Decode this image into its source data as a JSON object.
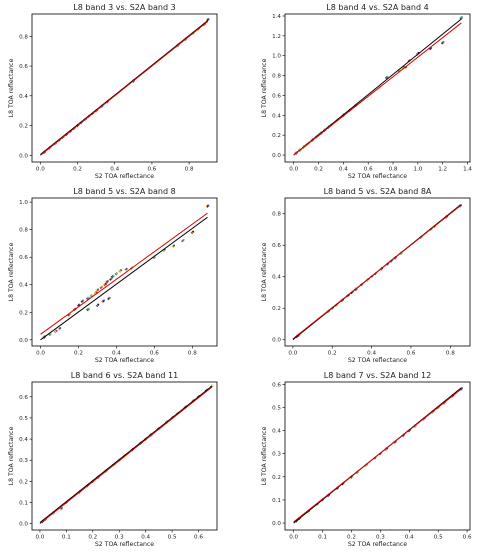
{
  "figure": {
    "xlabel": "S2 TOA reflectance",
    "ylabel": "L8 TOA reflectance"
  },
  "chart_data": [
    {
      "type": "scatter",
      "title": "L8 band 3 vs. S2A band 3",
      "xlabel": "S2 TOA reflectance",
      "ylabel": "L8 TOA reflectance",
      "xlim": [
        -0.045,
        0.95
      ],
      "ylim": [
        -0.045,
        0.95
      ],
      "xticks": [
        "0.0",
        "0.2",
        "0.4",
        "0.6",
        "0.8"
      ],
      "yticks": [
        "0.0",
        "0.2",
        "0.4",
        "0.6",
        "0.8"
      ],
      "grid": false,
      "series": [
        {
          "values": [
            [
              0.02,
              0.02
            ],
            [
              0.05,
              0.05
            ],
            [
              0.08,
              0.08
            ],
            [
              0.1,
              0.1
            ],
            [
              0.12,
              0.12
            ],
            [
              0.14,
              0.14
            ],
            [
              0.16,
              0.16
            ],
            [
              0.18,
              0.18
            ],
            [
              0.2,
              0.2
            ],
            [
              0.22,
              0.22
            ],
            [
              0.24,
              0.24
            ],
            [
              0.26,
              0.26
            ],
            [
              0.28,
              0.28
            ],
            [
              0.3,
              0.3
            ],
            [
              0.33,
              0.33
            ],
            [
              0.36,
              0.36
            ],
            [
              0.5,
              0.5
            ],
            [
              0.74,
              0.74
            ],
            [
              0.78,
              0.78
            ],
            [
              0.82,
              0.82
            ],
            [
              0.85,
              0.85
            ],
            [
              0.88,
              0.88
            ],
            [
              0.9,
              0.91
            ]
          ]
        }
      ],
      "fit_lines": [
        {
          "color": "#000000",
          "points": [
            [
              0.0,
              0.005
            ],
            [
              0.9,
              0.905
            ]
          ]
        },
        {
          "color": "#e00000",
          "points": [
            [
              0.0,
              0.0
            ],
            [
              0.9,
              0.9
            ]
          ]
        }
      ]
    },
    {
      "type": "scatter",
      "title": "L8 band 4 vs. S2A band 4",
      "xlabel": "S2 TOA reflectance",
      "ylabel": "L8 TOA reflectance",
      "xlim": [
        -0.07,
        1.42
      ],
      "ylim": [
        -0.07,
        1.42
      ],
      "xticks": [
        "0.0",
        "0.2",
        "0.4",
        "0.6",
        "0.8",
        "1.0",
        "1.2",
        "1.4"
      ],
      "yticks": [
        "0.0",
        "0.2",
        "0.4",
        "0.6",
        "0.8",
        "1.0",
        "1.2",
        "1.4"
      ],
      "grid": false,
      "series": [
        {
          "values": [
            [
              0.02,
              0.02
            ],
            [
              0.05,
              0.05
            ],
            [
              0.08,
              0.08
            ],
            [
              0.1,
              0.1
            ],
            [
              0.12,
              0.12
            ],
            [
              0.15,
              0.15
            ],
            [
              0.18,
              0.18
            ],
            [
              0.2,
              0.2
            ],
            [
              0.22,
              0.22
            ],
            [
              0.25,
              0.25
            ],
            [
              0.28,
              0.28
            ],
            [
              0.3,
              0.3
            ],
            [
              0.35,
              0.35
            ],
            [
              0.4,
              0.4
            ],
            [
              0.45,
              0.45
            ],
            [
              0.5,
              0.5
            ],
            [
              0.75,
              0.78
            ],
            [
              0.85,
              0.85
            ],
            [
              0.88,
              0.88
            ],
            [
              0.9,
              0.88
            ],
            [
              0.93,
              0.95
            ],
            [
              1.0,
              1.02
            ],
            [
              1.1,
              1.07
            ],
            [
              1.2,
              1.13
            ],
            [
              1.35,
              1.38
            ]
          ]
        }
      ],
      "fit_lines": [
        {
          "color": "#000000",
          "points": [
            [
              0.0,
              0.0
            ],
            [
              1.35,
              1.37
            ]
          ]
        },
        {
          "color": "#e00000",
          "points": [
            [
              0.0,
              0.0
            ],
            [
              1.35,
              1.33
            ]
          ]
        }
      ]
    },
    {
      "type": "scatter",
      "title": "L8 band 5 vs. S2A band 8",
      "xlabel": "S2 TOA reflectance",
      "ylabel": "L8 TOA reflectance",
      "xlim": [
        -0.045,
        0.93
      ],
      "ylim": [
        -0.045,
        1.03
      ],
      "xticks": [
        "0.0",
        "0.2",
        "0.4",
        "0.6",
        "0.8"
      ],
      "yticks": [
        "0.0",
        "0.2",
        "0.4",
        "0.6",
        "0.8",
        "1.0"
      ],
      "grid": false,
      "series": [
        {
          "values": [
            [
              0.02,
              0.02
            ],
            [
              0.05,
              0.04
            ],
            [
              0.08,
              0.06
            ],
            [
              0.1,
              0.08
            ],
            [
              0.15,
              0.18
            ],
            [
              0.18,
              0.22
            ],
            [
              0.2,
              0.25
            ],
            [
              0.22,
              0.28
            ],
            [
              0.25,
              0.3
            ],
            [
              0.27,
              0.32
            ],
            [
              0.29,
              0.34
            ],
            [
              0.3,
              0.36
            ],
            [
              0.32,
              0.38
            ],
            [
              0.34,
              0.4
            ],
            [
              0.35,
              0.42
            ],
            [
              0.37,
              0.44
            ],
            [
              0.38,
              0.46
            ],
            [
              0.4,
              0.48
            ],
            [
              0.42,
              0.5
            ],
            [
              0.45,
              0.51
            ],
            [
              0.48,
              0.52
            ],
            [
              0.3,
              0.25
            ],
            [
              0.33,
              0.28
            ],
            [
              0.36,
              0.3
            ],
            [
              0.25,
              0.22
            ],
            [
              0.6,
              0.6
            ],
            [
              0.65,
              0.65
            ],
            [
              0.7,
              0.68
            ],
            [
              0.75,
              0.72
            ],
            [
              0.8,
              0.78
            ],
            [
              0.88,
              0.97
            ]
          ]
        }
      ],
      "fit_lines": [
        {
          "color": "#000000",
          "points": [
            [
              0.0,
              0.0
            ],
            [
              0.88,
              0.89
            ]
          ]
        },
        {
          "color": "#e00000",
          "points": [
            [
              0.0,
              0.04
            ],
            [
              0.88,
              0.92
            ]
          ]
        }
      ]
    },
    {
      "type": "scatter",
      "title": "L8 band 5 vs. S2A band 8A",
      "xlabel": "S2 TOA reflectance",
      "ylabel": "L8 TOA reflectance",
      "xlim": [
        -0.04,
        0.9
      ],
      "ylim": [
        -0.04,
        0.9
      ],
      "xticks": [
        "0.0",
        "0.2",
        "0.4",
        "0.6",
        "0.8"
      ],
      "yticks": [
        "0.0",
        "0.2",
        "0.4",
        "0.6",
        "0.8"
      ],
      "grid": false,
      "series": [
        {
          "values": [
            [
              0.02,
              0.02
            ],
            [
              0.03,
              0.03
            ],
            [
              0.18,
              0.18
            ],
            [
              0.2,
              0.2
            ],
            [
              0.22,
              0.22
            ],
            [
              0.25,
              0.25
            ],
            [
              0.28,
              0.28
            ],
            [
              0.3,
              0.3
            ],
            [
              0.32,
              0.32
            ],
            [
              0.35,
              0.35
            ],
            [
              0.38,
              0.38
            ],
            [
              0.4,
              0.4
            ],
            [
              0.42,
              0.42
            ],
            [
              0.45,
              0.45
            ],
            [
              0.48,
              0.48
            ],
            [
              0.5,
              0.5
            ],
            [
              0.52,
              0.52
            ],
            [
              0.55,
              0.55
            ],
            [
              0.65,
              0.65
            ],
            [
              0.7,
              0.7
            ],
            [
              0.72,
              0.72
            ],
            [
              0.78,
              0.78
            ],
            [
              0.85,
              0.85
            ]
          ]
        }
      ],
      "fit_lines": [
        {
          "color": "#000000",
          "points": [
            [
              0.0,
              0.0
            ],
            [
              0.85,
              0.855
            ]
          ]
        },
        {
          "color": "#e00000",
          "points": [
            [
              0.0,
              0.005
            ],
            [
              0.85,
              0.85
            ]
          ]
        }
      ]
    },
    {
      "type": "scatter",
      "title": "L8 band 6 vs. S2A band 11",
      "xlabel": "S2 TOA reflectance",
      "ylabel": "L8 TOA reflectance",
      "xlim": [
        -0.03,
        0.67
      ],
      "ylim": [
        -0.03,
        0.67
      ],
      "xticks": [
        "0.0",
        "0.1",
        "0.2",
        "0.3",
        "0.4",
        "0.5",
        "0.6"
      ],
      "yticks": [
        "0.0",
        "0.1",
        "0.2",
        "0.3",
        "0.4",
        "0.5",
        "0.6"
      ],
      "grid": false,
      "series": [
        {
          "values": [
            [
              0.01,
              0.01
            ],
            [
              0.02,
              0.02
            ],
            [
              0.05,
              0.05
            ],
            [
              0.08,
              0.07
            ],
            [
              0.1,
              0.1
            ],
            [
              0.15,
              0.15
            ],
            [
              0.18,
              0.18
            ],
            [
              0.2,
              0.2
            ],
            [
              0.22,
              0.22
            ],
            [
              0.25,
              0.25
            ],
            [
              0.28,
              0.28
            ],
            [
              0.3,
              0.3
            ],
            [
              0.32,
              0.32
            ],
            [
              0.35,
              0.35
            ],
            [
              0.38,
              0.38
            ],
            [
              0.4,
              0.4
            ],
            [
              0.42,
              0.42
            ],
            [
              0.45,
              0.45
            ],
            [
              0.48,
              0.48
            ],
            [
              0.5,
              0.5
            ],
            [
              0.52,
              0.52
            ],
            [
              0.55,
              0.55
            ],
            [
              0.58,
              0.58
            ],
            [
              0.6,
              0.6
            ],
            [
              0.63,
              0.63
            ],
            [
              0.65,
              0.65
            ]
          ]
        }
      ],
      "fit_lines": [
        {
          "color": "#000000",
          "points": [
            [
              0.0,
              0.005
            ],
            [
              0.65,
              0.65
            ]
          ]
        },
        {
          "color": "#e00000",
          "points": [
            [
              0.0,
              0.0
            ],
            [
              0.65,
              0.645
            ]
          ]
        }
      ]
    },
    {
      "type": "scatter",
      "title": "L8 band 7 vs. S2A band 12",
      "xlabel": "S2 TOA reflectance",
      "ylabel": "L8 TOA reflectance",
      "xlim": [
        -0.03,
        0.61
      ],
      "ylim": [
        -0.03,
        0.61
      ],
      "xticks": [
        "0.0",
        "0.1",
        "0.2",
        "0.3",
        "0.4",
        "0.5",
        "0.6"
      ],
      "yticks": [
        "0.0",
        "0.1",
        "0.2",
        "0.3",
        "0.4",
        "0.5",
        "0.6"
      ],
      "grid": false,
      "series": [
        {
          "values": [
            [
              0.01,
              0.01
            ],
            [
              0.02,
              0.02
            ],
            [
              0.05,
              0.05
            ],
            [
              0.08,
              0.08
            ],
            [
              0.1,
              0.1
            ],
            [
              0.12,
              0.12
            ],
            [
              0.15,
              0.15
            ],
            [
              0.17,
              0.17
            ],
            [
              0.2,
              0.2
            ],
            [
              0.22,
              0.22
            ],
            [
              0.25,
              0.25
            ],
            [
              0.28,
              0.28
            ],
            [
              0.3,
              0.3
            ],
            [
              0.32,
              0.32
            ],
            [
              0.35,
              0.35
            ],
            [
              0.38,
              0.38
            ],
            [
              0.4,
              0.4
            ],
            [
              0.42,
              0.42
            ],
            [
              0.45,
              0.45
            ],
            [
              0.48,
              0.48
            ],
            [
              0.5,
              0.5
            ],
            [
              0.52,
              0.52
            ],
            [
              0.55,
              0.55
            ],
            [
              0.58,
              0.58
            ]
          ]
        }
      ],
      "fit_lines": [
        {
          "color": "#000000",
          "points": [
            [
              0.0,
              0.0
            ],
            [
              0.58,
              0.585
            ]
          ]
        },
        {
          "color": "#e00000",
          "points": [
            [
              0.0,
              0.005
            ],
            [
              0.58,
              0.58
            ]
          ]
        }
      ]
    }
  ],
  "colors": [
    "#440154",
    "#3b528b",
    "#21918c",
    "#5ec962",
    "#fde725",
    "#c2185b",
    "#1f77b4",
    "#ff7f0e"
  ]
}
